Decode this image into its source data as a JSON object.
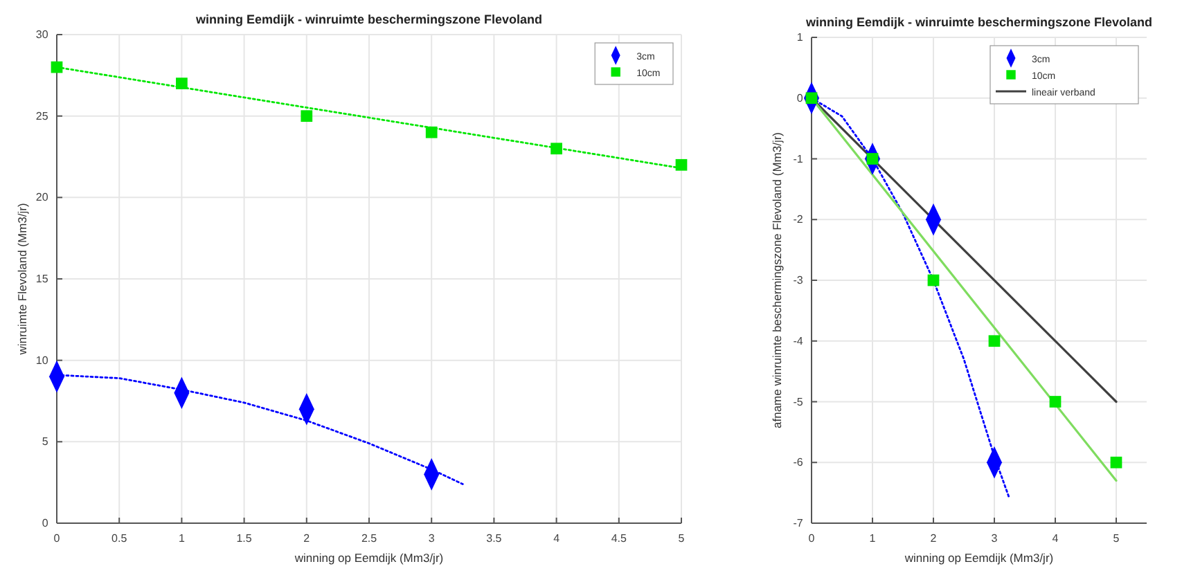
{
  "chart_data": [
    {
      "type": "scatter",
      "title": "winning Eemdijk - winruimte beschermingszone Flevoland",
      "xlabel": "winning op Eemdijk (Mm3/jr)",
      "ylabel": "winruimte Flevoland (Mm3/jr)",
      "xlim": [
        0,
        5
      ],
      "ylim": [
        0,
        30
      ],
      "xticks": [
        0,
        0.5,
        1,
        1.5,
        2,
        2.5,
        3,
        3.5,
        4,
        4.5,
        5
      ],
      "yticks": [
        0,
        5,
        10,
        15,
        20,
        25,
        30
      ],
      "grid": true,
      "legend": "top right",
      "series": [
        {
          "name": "3cm",
          "type": "scatter",
          "marker": "diamond",
          "color": "#0000ff",
          "x": [
            0,
            1,
            2,
            3
          ],
          "values": [
            9,
            8,
            7,
            3
          ]
        },
        {
          "name": "10cm",
          "type": "scatter",
          "marker": "square",
          "color": "#00e600",
          "x": [
            0,
            1,
            2,
            3,
            4,
            5
          ],
          "values": [
            28,
            27,
            25,
            24,
            23,
            22
          ]
        },
        {
          "type": "line",
          "marker": "none",
          "line_style": "dotted",
          "color": "#0000ff",
          "x": [
            0,
            0.5,
            1,
            1.5,
            2,
            2.5,
            3,
            3.25
          ],
          "values": [
            9.1,
            8.9,
            8.2,
            7.4,
            6.3,
            4.9,
            3.3,
            2.4
          ]
        },
        {
          "type": "line",
          "marker": "none",
          "line_style": "dotted",
          "color": "#00e600",
          "x": [
            0,
            5
          ],
          "values": [
            28,
            21.8
          ]
        }
      ]
    },
    {
      "type": "scatter",
      "title": "winning Eemdijk - winruimte beschermingszone Flevoland",
      "xlabel": "winning op Eemdijk (Mm3/jr)",
      "ylabel": "afname winruimte beschermingszone Flevoland (Mm3/jr)",
      "xlim": [
        0,
        5.5
      ],
      "ylim": [
        -7,
        1
      ],
      "xticks": [
        0,
        1,
        2,
        3,
        4,
        5
      ],
      "yticks": [
        -7,
        -6,
        -5,
        -4,
        -3,
        -2,
        -1,
        0,
        1
      ],
      "grid": true,
      "legend": "top right",
      "series": [
        {
          "name": "3cm",
          "type": "scatter",
          "marker": "diamond",
          "color": "#0000ff",
          "x": [
            0,
            1,
            2,
            3
          ],
          "values": [
            0,
            -1,
            -2,
            -6
          ]
        },
        {
          "name": "10cm",
          "type": "scatter",
          "marker": "square",
          "color": "#00e600",
          "x": [
            0,
            1,
            2,
            3,
            4,
            5
          ],
          "values": [
            0,
            -1,
            -3,
            -4,
            -5,
            -6
          ]
        },
        {
          "name": "lineair verband",
          "type": "line",
          "marker": "none",
          "line_style": "solid",
          "color": "#404040",
          "x": [
            0,
            5
          ],
          "values": [
            0,
            -5
          ]
        },
        {
          "type": "line",
          "marker": "none",
          "line_style": "dotted",
          "color": "#0000ff",
          "x": [
            0,
            0.5,
            1,
            1.5,
            2,
            2.5,
            3,
            3.25
          ],
          "values": [
            0,
            -0.3,
            -1,
            -1.9,
            -3,
            -4.3,
            -5.9,
            -6.6
          ]
        },
        {
          "type": "line",
          "marker": "none",
          "line_style": "solid",
          "color": "#7fdc5f",
          "x": [
            0,
            5
          ],
          "values": [
            0,
            -6.3
          ]
        }
      ]
    }
  ]
}
